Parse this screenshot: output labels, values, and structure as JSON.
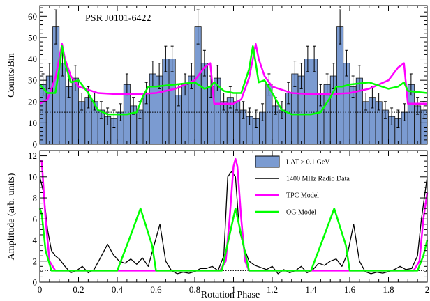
{
  "chart_data": [
    {
      "type": "histogram",
      "panel": "top",
      "ylabel": "Counts/Bin",
      "annotation": "PSR J0101-6422",
      "xlim": [
        0,
        2
      ],
      "ylim": [
        0,
        65
      ],
      "yticks": [
        0,
        10,
        20,
        30,
        40,
        50,
        60
      ],
      "background_level": 15,
      "bins": 30,
      "counts": [
        28,
        32,
        55,
        38,
        27,
        31,
        20,
        22,
        20,
        16,
        13,
        12,
        15,
        28,
        18,
        16,
        24,
        33,
        32,
        40,
        40,
        23,
        28,
        32,
        55,
        38,
        27,
        31,
        20,
        22,
        20,
        16,
        13,
        12,
        15,
        28,
        18,
        16,
        24,
        33,
        32,
        40,
        40,
        23,
        28,
        32,
        55,
        38,
        27,
        31,
        20,
        22,
        20,
        16,
        13,
        12,
        15,
        28,
        18,
        16
      ],
      "errors": [
        5,
        6,
        8,
        6,
        5,
        6,
        4,
        5,
        4,
        4,
        4,
        4,
        4,
        5,
        4,
        4,
        5,
        6,
        6,
        6,
        6,
        5,
        5,
        6,
        8,
        6,
        5,
        6,
        4,
        5,
        4,
        4,
        4,
        4,
        4,
        5,
        4,
        4,
        5,
        6,
        6,
        6,
        6,
        5,
        5,
        6,
        8,
        6,
        5,
        6,
        4,
        5,
        4,
        4,
        4,
        4,
        4,
        5,
        4,
        4
      ],
      "series": [
        {
          "name": "TPC Model",
          "color": "#ff00ff",
          "x": [
            0,
            0.04,
            0.08,
            0.1,
            0.115,
            0.13,
            0.16,
            0.2,
            0.3,
            0.4,
            0.5,
            0.6,
            0.7,
            0.8,
            0.85,
            0.88,
            0.9,
            1.0,
            1.04,
            1.08,
            1.1,
            1.115,
            1.13,
            1.16,
            1.2,
            1.3,
            1.4,
            1.5,
            1.6,
            1.7,
            1.8,
            1.85,
            1.88,
            1.9,
            2.0
          ],
          "y": [
            19,
            21,
            31,
            40,
            47,
            40,
            32,
            27,
            24,
            23.5,
            23.5,
            24,
            26,
            30,
            36,
            38,
            19,
            19,
            21,
            31,
            40,
            47,
            40,
            32,
            27,
            24,
            23.5,
            23.5,
            24,
            26,
            30,
            36,
            38,
            19,
            19
          ]
        },
        {
          "name": "OG Model",
          "color": "#00ff00",
          "x": [
            0,
            0.04,
            0.08,
            0.1,
            0.115,
            0.13,
            0.16,
            0.2,
            0.25,
            0.3,
            0.35,
            0.4,
            0.45,
            0.5,
            0.53,
            0.56,
            0.6,
            0.7,
            0.8,
            0.85,
            0.88,
            0.9,
            0.95,
            1.0,
            1.04,
            1.08,
            1.1,
            1.115,
            1.13,
            1.16,
            1.2,
            1.25,
            1.3,
            1.35,
            1.4,
            1.45,
            1.5,
            1.53,
            1.56,
            1.6,
            1.7,
            1.8,
            1.85,
            1.88,
            1.9,
            2.0
          ],
          "y": [
            28,
            24,
            24,
            35,
            46,
            38,
            29,
            30,
            24,
            16,
            14,
            14,
            14,
            15,
            22,
            27,
            27,
            28,
            29,
            26,
            27,
            29,
            25,
            24,
            24,
            35,
            46,
            38,
            29,
            30,
            24,
            16,
            14,
            14,
            14,
            15,
            22,
            27,
            27,
            28,
            29,
            26,
            27,
            29,
            25,
            24
          ]
        }
      ]
    },
    {
      "type": "line",
      "panel": "bottom",
      "ylabel": "Amplitude (arb. units)",
      "xlabel": "Rotation Phase",
      "xlim": [
        0,
        2
      ],
      "ylim": [
        0,
        12.5
      ],
      "yticks": [
        0,
        2,
        4,
        6,
        8,
        10,
        12
      ],
      "xticks": [
        0,
        0.2,
        0.4,
        0.6,
        0.8,
        1,
        1.2,
        1.4,
        1.6,
        1.8,
        2
      ],
      "xtick_labels": [
        "0",
        "0.2",
        "0.4",
        "0.6",
        "0.8",
        "1",
        "1.2",
        "1.4",
        "1.6",
        "1.8",
        "2"
      ],
      "baseline_level": 1.1,
      "legend": [
        {
          "label": "LAT ≥ 0.1 GeV",
          "kind": "box",
          "color": "#7b9bd1"
        },
        {
          "label": "1400 MHz Radio Data",
          "kind": "line",
          "color": "#000000"
        },
        {
          "label": "TPC Model",
          "kind": "line",
          "color": "#ff00ff"
        },
        {
          "label": "OG Model",
          "kind": "line",
          "color": "#00ff00"
        }
      ],
      "series": [
        {
          "name": "1400 MHz Radio Data",
          "color": "#000000",
          "x": [
            0,
            0.02,
            0.04,
            0.06,
            0.08,
            0.1,
            0.13,
            0.16,
            0.19,
            0.22,
            0.25,
            0.28,
            0.31,
            0.35,
            0.38,
            0.41,
            0.44,
            0.47,
            0.5,
            0.53,
            0.56,
            0.59,
            0.62,
            0.65,
            0.68,
            0.71,
            0.74,
            0.77,
            0.8,
            0.83,
            0.86,
            0.89,
            0.92,
            0.95,
            0.97,
            0.99,
            1.01,
            1.03,
            1.05,
            1.08,
            1.11,
            1.14,
            1.17,
            1.2,
            1.23,
            1.26,
            1.29,
            1.32,
            1.35,
            1.38,
            1.41,
            1.44,
            1.47,
            1.5,
            1.53,
            1.56,
            1.59,
            1.62,
            1.65,
            1.68,
            1.71,
            1.74,
            1.77,
            1.8,
            1.83,
            1.86,
            1.89,
            1.92,
            1.95,
            1.97,
            2.0
          ],
          "y": [
            10,
            8.5,
            5,
            3,
            2.5,
            2.2,
            1.5,
            0.9,
            1.1,
            1.5,
            0.9,
            1.2,
            2.2,
            3.6,
            2.6,
            2.0,
            1.8,
            2.2,
            1.7,
            2.3,
            1.5,
            3.5,
            5.5,
            2.0,
            1.1,
            0.8,
            0.95,
            0.85,
            1.0,
            1.3,
            1.3,
            1.5,
            1.1,
            2.5,
            10,
            10.5,
            10,
            5,
            3.5,
            2.0,
            1.6,
            1.4,
            1.2,
            1.5,
            0.8,
            1.2,
            0.9,
            1.1,
            1.5,
            0.9,
            1.2,
            1.8,
            1.6,
            2.0,
            2.2,
            1.5,
            2.8,
            5.5,
            2.0,
            1.0,
            0.8,
            0.95,
            0.85,
            1.0,
            1.2,
            1.5,
            1.2,
            1.3,
            2.5,
            6,
            10
          ]
        },
        {
          "name": "TPC Model",
          "color": "#ff00ff",
          "x": [
            0,
            0.01,
            0.03,
            0.05,
            0.08,
            0.1,
            0.9,
            0.93,
            0.96,
            0.98,
            1.0,
            1.01,
            1.02,
            1.04,
            1.06,
            1.08,
            1.1,
            1.9,
            1.93,
            1.96,
            1.98,
            2.0
          ],
          "y": [
            11.5,
            11.5,
            6,
            2,
            1.1,
            1.1,
            1.1,
            1.1,
            2,
            6,
            11,
            11.7,
            11,
            6,
            2,
            1.1,
            1.1,
            1.1,
            1.1,
            2,
            6,
            8.5
          ]
        },
        {
          "name": "OG Model",
          "color": "#00ff00",
          "x": [
            0,
            0.01,
            0.03,
            0.06,
            0.08,
            0.4,
            0.46,
            0.52,
            0.58,
            0.6,
            0.9,
            0.94,
            0.98,
            1.01,
            1.04,
            1.08,
            1.1,
            1.4,
            1.46,
            1.52,
            1.58,
            1.6,
            1.9,
            1.95,
            1.98,
            2.0
          ],
          "y": [
            7,
            6.5,
            3,
            1.1,
            1.1,
            1.1,
            4,
            7,
            3.5,
            1.1,
            1.1,
            1.1,
            4.5,
            7,
            4.5,
            1.1,
            1.1,
            1.1,
            4,
            7,
            3.5,
            1.1,
            1.1,
            1.1,
            2.5,
            4
          ]
        }
      ]
    }
  ]
}
